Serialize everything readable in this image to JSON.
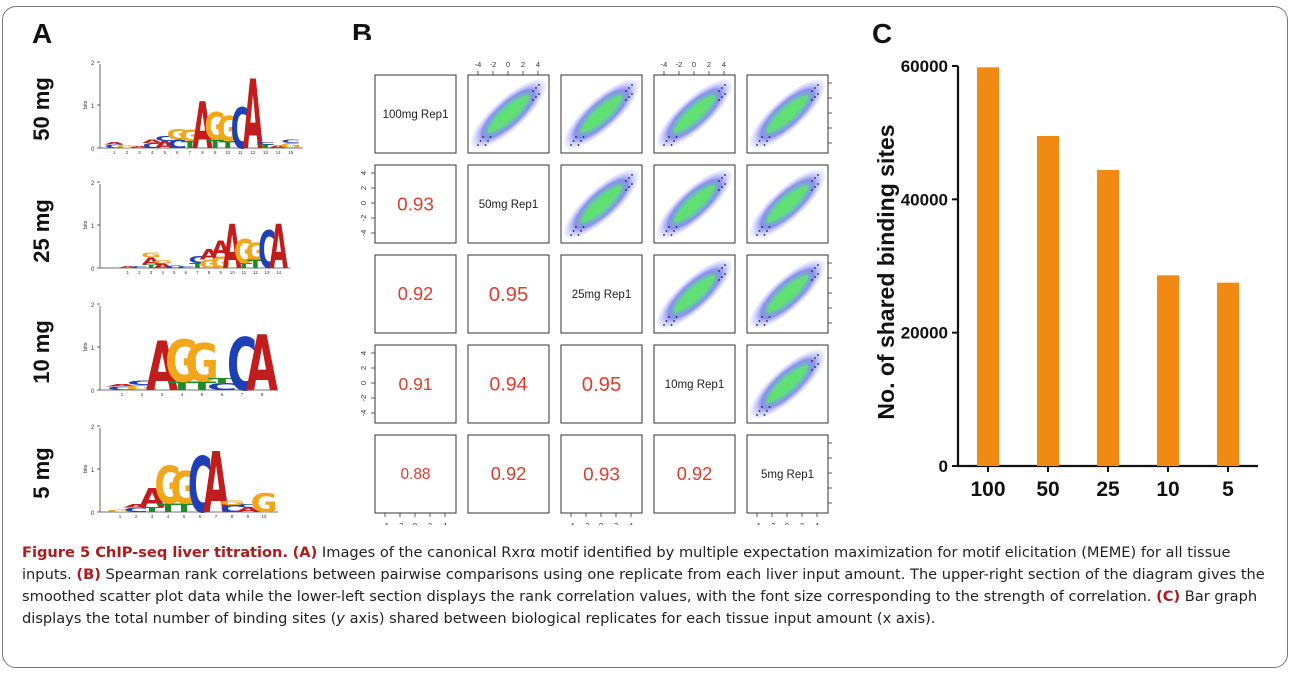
{
  "panel_labels": [
    "A",
    "B",
    "C"
  ],
  "panel_a": {
    "rows": [
      {
        "label": "50 mg",
        "logo": "AGGCA",
        "positions": [
          "1",
          "2",
          "3",
          "4",
          "5",
          "6",
          "7",
          "8",
          "9",
          "10",
          "11",
          "12",
          "13",
          "14",
          "15"
        ]
      },
      {
        "label": "25 mg",
        "logo": "AGGCA",
        "positions": [
          "1",
          "2",
          "3",
          "4",
          "5",
          "6",
          "7",
          "8",
          "9",
          "10",
          "11",
          "12",
          "13",
          "14"
        ]
      },
      {
        "label": "10 mg",
        "logo": "AGGCA",
        "positions": [
          "1",
          "2",
          "3",
          "4",
          "5",
          "6",
          "7",
          "8"
        ]
      },
      {
        "label": "5 mg",
        "logo": "AGGCA",
        "positions": [
          "1",
          "2",
          "3",
          "4",
          "5",
          "6",
          "7",
          "8",
          "9",
          "10"
        ]
      }
    ],
    "yaxis": "bits",
    "yticks": [
      "0",
      "1",
      "2"
    ],
    "colors": {
      "A": "#c21d1d",
      "G": "#f2a71b",
      "C": "#1f3fb5",
      "T": "#1f8a2c"
    }
  },
  "panel_b": {
    "labels": [
      "100mg Rep1",
      "50mg Rep1",
      "25mg Rep1",
      "10mg Rep1",
      "5mg Rep1"
    ],
    "correlations": [
      [
        "",
        "",
        "",
        "",
        ""
      ],
      [
        "0.93",
        "",
        "",
        "",
        ""
      ],
      [
        "0.92",
        "0.95",
        "",
        "",
        ""
      ],
      [
        "0.91",
        "0.94",
        "0.95",
        "",
        ""
      ],
      [
        "0.88",
        "0.92",
        "0.93",
        "0.92",
        ""
      ]
    ],
    "axis_ticks": [
      "-4",
      "-2",
      "0",
      "2",
      "4"
    ],
    "corr_color": "#e23b2e"
  },
  "chart_data": {
    "type": "bar",
    "title": "",
    "xlabel": "",
    "ylabel": "No. of shared binding sites",
    "categories": [
      "100",
      "50",
      "25",
      "10",
      "5"
    ],
    "values": [
      59800,
      49500,
      44400,
      28600,
      27500
    ],
    "ylim": [
      0,
      60000
    ],
    "yticks": [
      "0",
      "20000",
      "40000",
      "60000"
    ],
    "bar_color": "#f08a12",
    "grid": false
  },
  "caption": {
    "title": "Figure 5 ChIP-seq liver titration.",
    "a_tag": "(A)",
    "a_text": " Images of the canonical Rxrα motif identified by multiple expectation maximization for motif elicitation (MEME) for all tissue inputs. ",
    "b_tag": "(B)",
    "b_text": " Spearman rank correlations between pairwise comparisons using one replicate from each liver input amount. The upper-right section of the diagram gives the smoothed scatter plot data while the lower-left section displays the rank correlation values, with the font size corresponding to the strength of correlation. ",
    "c_tag": "(C)",
    "c_text_1": " Bar graph displays the total number of binding sites (",
    "c_y": "y",
    "c_text_2": " axis) shared between biological replicates for each tissue input amount (x axis)."
  }
}
